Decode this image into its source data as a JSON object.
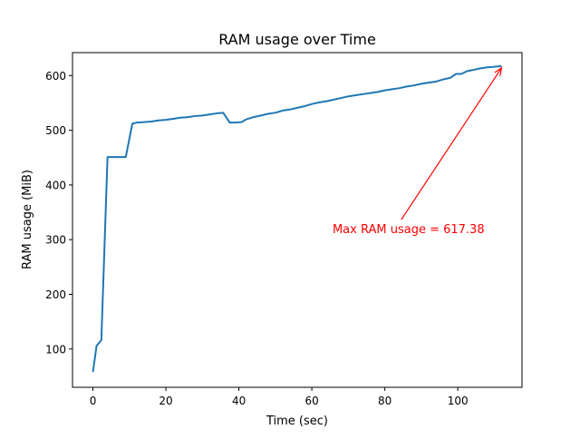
{
  "chart_data": {
    "type": "line",
    "title": "RAM usage over Time",
    "xlabel": "Time (sec)",
    "ylabel": "RAM usage (MiB)",
    "xlim": [
      -5.6,
      117.6
    ],
    "ylim": [
      30,
      642
    ],
    "xticks": [
      0,
      20,
      40,
      60,
      80,
      100
    ],
    "yticks": [
      100,
      200,
      300,
      400,
      500,
      600
    ],
    "grid": false,
    "line_color": "#1f77b4",
    "annotation": {
      "text": "Max RAM usage = 617.38",
      "color": "#ff0000",
      "point": [
        112,
        617.38
      ],
      "text_anchor_point": [
        86.5,
        320
      ]
    },
    "series": [
      {
        "x": [
          0,
          1,
          2.3,
          4,
          5,
          6,
          7,
          8,
          9,
          10.8,
          12,
          14,
          16,
          18,
          20,
          22,
          24,
          26,
          28,
          30,
          32,
          34,
          35.7,
          37.5,
          39,
          40.8,
          42,
          44,
          46,
          48,
          50,
          52,
          54,
          56,
          58,
          60,
          62,
          64,
          66,
          68,
          70,
          72,
          74,
          76,
          78,
          80,
          82,
          84,
          86,
          88,
          90,
          92,
          94,
          96,
          98,
          99.5,
          101,
          102.5,
          104,
          106,
          108,
          110,
          112
        ],
        "y": [
          58,
          106,
          116,
          451,
          451,
          451,
          451,
          451,
          451,
          512,
          514,
          515,
          516,
          518,
          519,
          521,
          523,
          524,
          526,
          527,
          529,
          531,
          532,
          514,
          514,
          515,
          520,
          524,
          527,
          530,
          532,
          536,
          538,
          541,
          544,
          548,
          551,
          553,
          556,
          559,
          562,
          564,
          566,
          568,
          570,
          573,
          575,
          577,
          580,
          582,
          585,
          587,
          589,
          593,
          596,
          603,
          603,
          608,
          610,
          613,
          615,
          616,
          617.38
        ]
      }
    ]
  }
}
